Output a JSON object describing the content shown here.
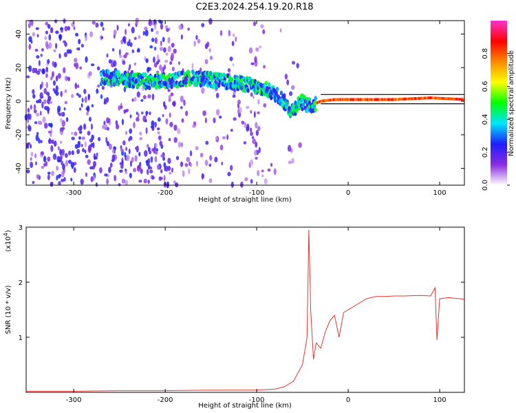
{
  "chart_data": [
    {
      "type": "heatmap",
      "title": "C2E3.2024.254.19.20.R18",
      "xlabel": "Height of straight line (km)",
      "ylabel": "Frequency (Hz)",
      "xlim": [
        -352,
        127
      ],
      "ylim": [
        -50,
        48
      ],
      "x_ticks": [
        -300,
        -200,
        -100,
        0,
        100
      ],
      "y_ticks": [
        -40,
        -20,
        0,
        20,
        40
      ],
      "colorbar": {
        "label": "Normalized spectral amplitude",
        "range": [
          0,
          1
        ],
        "ticks": [
          0.0,
          0.2,
          0.4,
          0.6,
          0.8
        ],
        "colors": [
          "#ffffff",
          "#8a2be2",
          "#1e1eff",
          "#00e5ff",
          "#00ff00",
          "#ffff00",
          "#ff8800",
          "#ff0000",
          "#ff33cc"
        ]
      },
      "ridge": [
        {
          "x": -260,
          "f": 14
        },
        {
          "x": -230,
          "f": 12
        },
        {
          "x": -200,
          "f": 12
        },
        {
          "x": -170,
          "f": 14
        },
        {
          "x": -140,
          "f": 12
        },
        {
          "x": -110,
          "f": 10
        },
        {
          "x": -90,
          "f": 7
        },
        {
          "x": -75,
          "f": 3
        },
        {
          "x": -62,
          "f": -6
        },
        {
          "x": -52,
          "f": 0
        },
        {
          "x": -42,
          "f": -3
        },
        {
          "x": -30,
          "f": 0
        },
        {
          "x": -15,
          "f": 1
        },
        {
          "x": 0,
          "f": 1
        },
        {
          "x": 50,
          "f": 1
        },
        {
          "x": 90,
          "f": 2
        },
        {
          "x": 127,
          "f": 1
        }
      ]
    },
    {
      "type": "line",
      "xlabel": "Height of straight line (km)",
      "ylabel": "SNR (10 * v/v)",
      "y_multiplier": "(x10",
      "y_multiplier_exp": "4",
      "xlim": [
        -352,
        127
      ],
      "ylim": [
        0,
        3
      ],
      "x_ticks": [
        -300,
        -200,
        -100,
        0,
        100
      ],
      "y_ticks": [
        1,
        2,
        3
      ],
      "color": "#e8332e",
      "series": [
        {
          "x": [
            -352,
            -300,
            -250,
            -200,
            -150,
            -120,
            -100,
            -90,
            -80,
            -70,
            -60,
            -55,
            -50,
            -45,
            -43,
            -41,
            -38,
            -35,
            -30,
            -25,
            -20,
            -15,
            -10,
            -5,
            0,
            5,
            10,
            20,
            30,
            40,
            50,
            60,
            80,
            90,
            95,
            97,
            100,
            110,
            127
          ],
          "y": [
            0.02,
            0.02,
            0.03,
            0.03,
            0.04,
            0.04,
            0.04,
            0.05,
            0.06,
            0.1,
            0.2,
            0.35,
            0.5,
            1.0,
            2.95,
            1.5,
            0.6,
            0.9,
            0.8,
            1.1,
            1.3,
            1.4,
            1.0,
            1.45,
            1.5,
            1.55,
            1.6,
            1.7,
            1.74,
            1.74,
            1.75,
            1.75,
            1.76,
            1.75,
            1.9,
            0.95,
            1.7,
            1.72,
            1.69
          ]
        }
      ]
    }
  ]
}
